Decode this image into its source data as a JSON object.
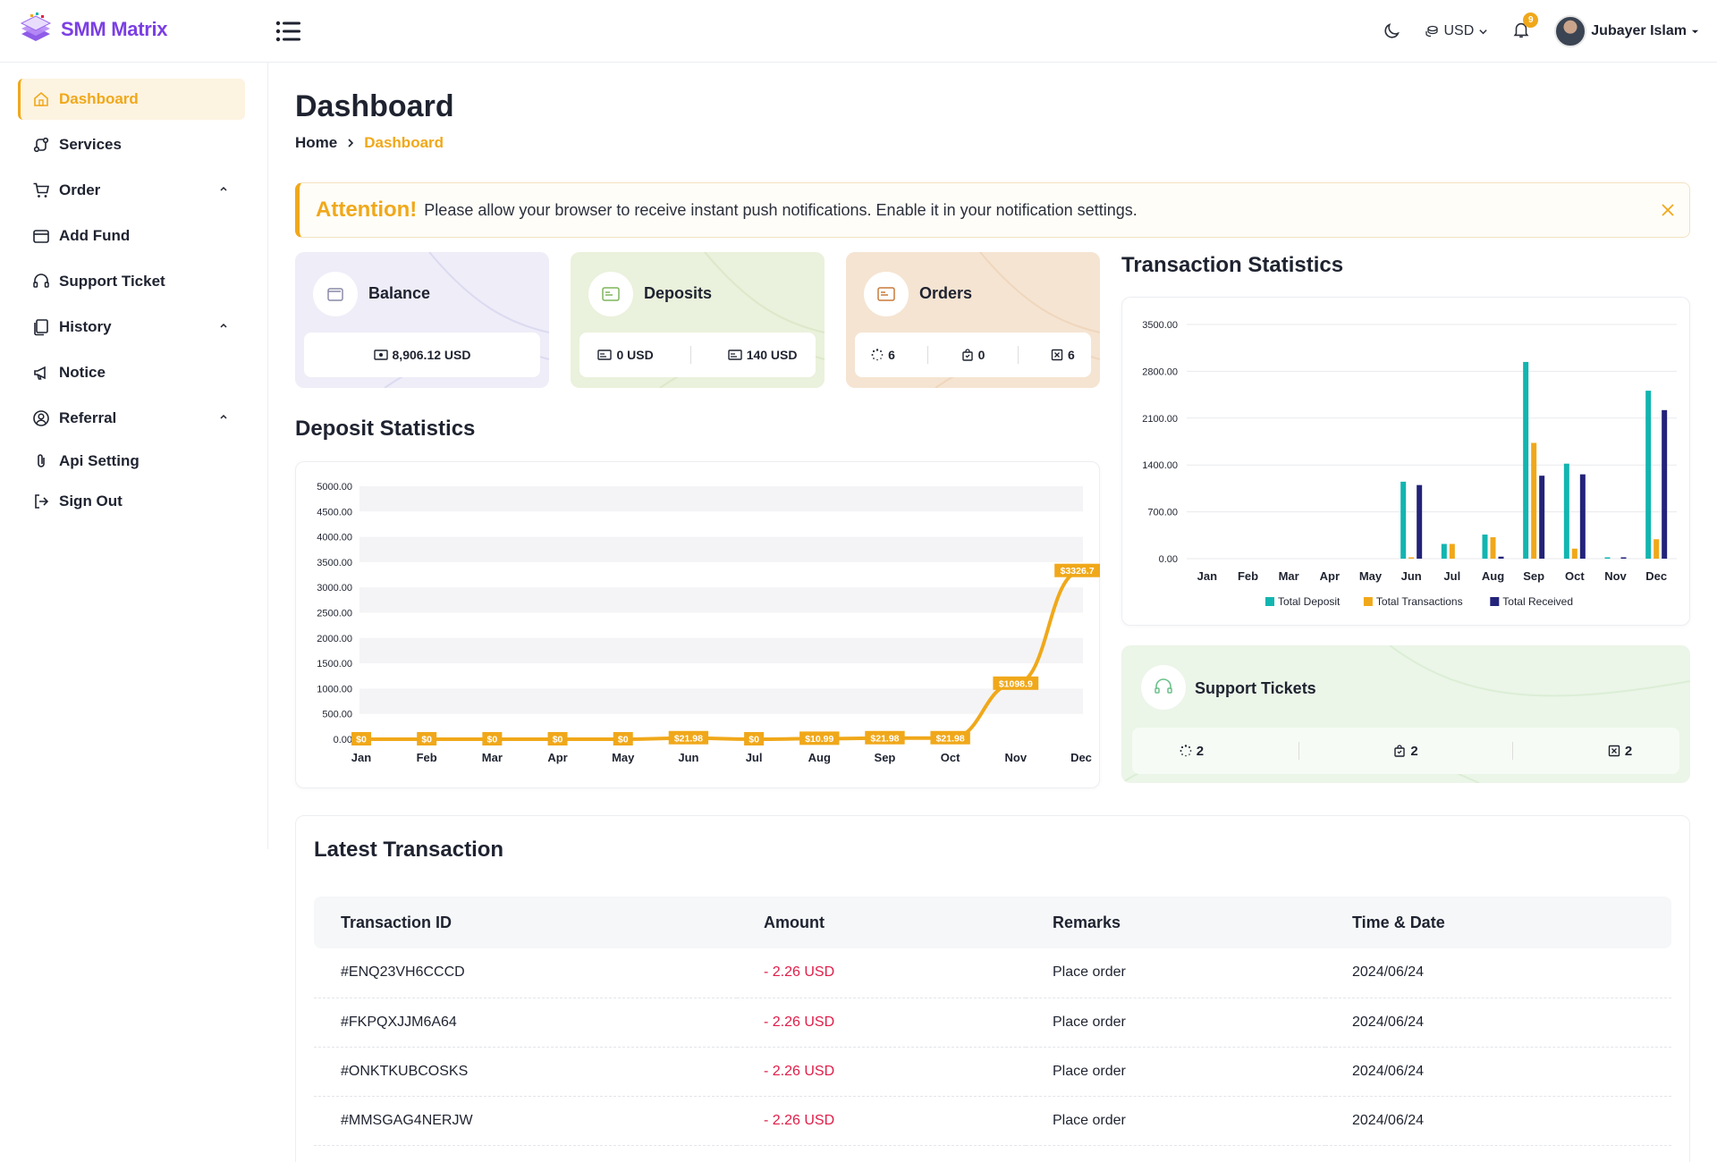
{
  "app": {
    "name": "SMM Matrix"
  },
  "header": {
    "currency": "USD",
    "notifications_count": "9",
    "user_name": "Jubayer Islam"
  },
  "sidebar": {
    "items": [
      {
        "label": "Dashboard",
        "icon": "home-icon",
        "active": true
      },
      {
        "label": "Services",
        "icon": "services-icon"
      },
      {
        "label": "Order",
        "icon": "cart-icon",
        "expandable": true
      },
      {
        "label": "Add Fund",
        "icon": "wallet-icon"
      },
      {
        "label": "Support Ticket",
        "icon": "headset-icon"
      },
      {
        "label": "History",
        "icon": "history-icon",
        "expandable": true
      },
      {
        "label": "Notice",
        "icon": "megaphone-icon"
      },
      {
        "label": "Referral",
        "icon": "referral-icon",
        "expandable": true
      },
      {
        "label": "Api Setting",
        "icon": "paperclip-icon"
      },
      {
        "label": "Sign Out",
        "icon": "sign-out-icon"
      }
    ]
  },
  "page": {
    "title": "Dashboard",
    "breadcrumb": {
      "home": "Home",
      "current": "Dashboard"
    }
  },
  "alert": {
    "title": "Attention!",
    "text": "Please allow your browser to receive instant push notifications. Enable it in your notification settings."
  },
  "cards": {
    "balance": {
      "title": "Balance",
      "value": "8,906.12 USD"
    },
    "deposits": {
      "title": "Deposits",
      "value1": "0 USD",
      "value2": "140 USD"
    },
    "orders": {
      "title": "Orders",
      "pending": "6",
      "processing": "0",
      "cancelled": "6"
    }
  },
  "sections": {
    "deposit_title": "Deposit Statistics",
    "transaction_title": "Transaction Statistics"
  },
  "support_tickets": {
    "title": "Support Tickets",
    "open": "2",
    "answered": "2",
    "closed": "2"
  },
  "colors": {
    "accent": "#f0a81a",
    "teal": "#12b5b0",
    "navy": "#23237a",
    "danger": "#e11d48"
  },
  "chart_data": [
    {
      "type": "line",
      "categories": [
        "Jan",
        "Feb",
        "Mar",
        "Apr",
        "May",
        "Jun",
        "Jul",
        "Aug",
        "Sep",
        "Oct",
        "Nov",
        "Dec"
      ],
      "series": [
        {
          "values": [
            0,
            0,
            0,
            0,
            0,
            21.98,
            0,
            10.99,
            21.98,
            21.98,
            1098.9,
            3326.7
          ]
        }
      ],
      "data_labels": [
        "$0",
        "$0",
        "$0",
        "$0",
        "$0",
        "$21.98",
        "$0",
        "$10.99",
        "$21.98",
        "$21.98",
        "$1098.9",
        "$3326.7"
      ],
      "y_ticks": [
        "0.00",
        "500.00",
        "1000.00",
        "1500.00",
        "2000.00",
        "2500.00",
        "3000.00",
        "3500.00",
        "4000.00",
        "4500.00",
        "5000.00"
      ],
      "ylim": [
        0,
        5000
      ],
      "grid": "alternating bands",
      "color": "#f0a81a"
    },
    {
      "type": "bar",
      "categories": [
        "Jan",
        "Feb",
        "Mar",
        "Apr",
        "May",
        "Jun",
        "Jul",
        "Aug",
        "Sep",
        "Oct",
        "Nov",
        "Dec"
      ],
      "series": [
        {
          "name": "Total Deposit",
          "color": "#12b5b0",
          "values": [
            0,
            0,
            0,
            0,
            0,
            1150,
            220,
            360,
            2940,
            1420,
            20,
            2510
          ]
        },
        {
          "name": "Total Transactions",
          "color": "#f0a81a",
          "values": [
            0,
            0,
            0,
            0,
            0,
            20,
            220,
            320,
            1730,
            150,
            0,
            290
          ]
        },
        {
          "name": "Total Received",
          "color": "#23237a",
          "values": [
            0,
            0,
            0,
            0,
            0,
            1100,
            0,
            30,
            1240,
            1260,
            20,
            2220
          ]
        }
      ],
      "y_ticks": [
        "0.00",
        "700.00",
        "1400.00",
        "2100.00",
        "2800.00",
        "3500.00"
      ],
      "ylim": [
        0,
        3500
      ],
      "legend": "bottom",
      "grid": true
    }
  ],
  "transactions": {
    "title": "Latest Transaction",
    "headers": [
      "Transaction ID",
      "Amount",
      "Remarks",
      "Time & Date"
    ],
    "rows": [
      {
        "id": "#ENQ23VH6CCCD",
        "amount": "- 2.26 USD",
        "remarks": "Place order",
        "date": "2024/06/24"
      },
      {
        "id": "#FKPQXJJM6A64",
        "amount": "- 2.26 USD",
        "remarks": "Place order",
        "date": "2024/06/24"
      },
      {
        "id": "#ONKTKUBCOSKS",
        "amount": "- 2.26 USD",
        "remarks": "Place order",
        "date": "2024/06/24"
      },
      {
        "id": "#MMSGAG4NERJW",
        "amount": "- 2.26 USD",
        "remarks": "Place order",
        "date": "2024/06/24"
      }
    ]
  }
}
